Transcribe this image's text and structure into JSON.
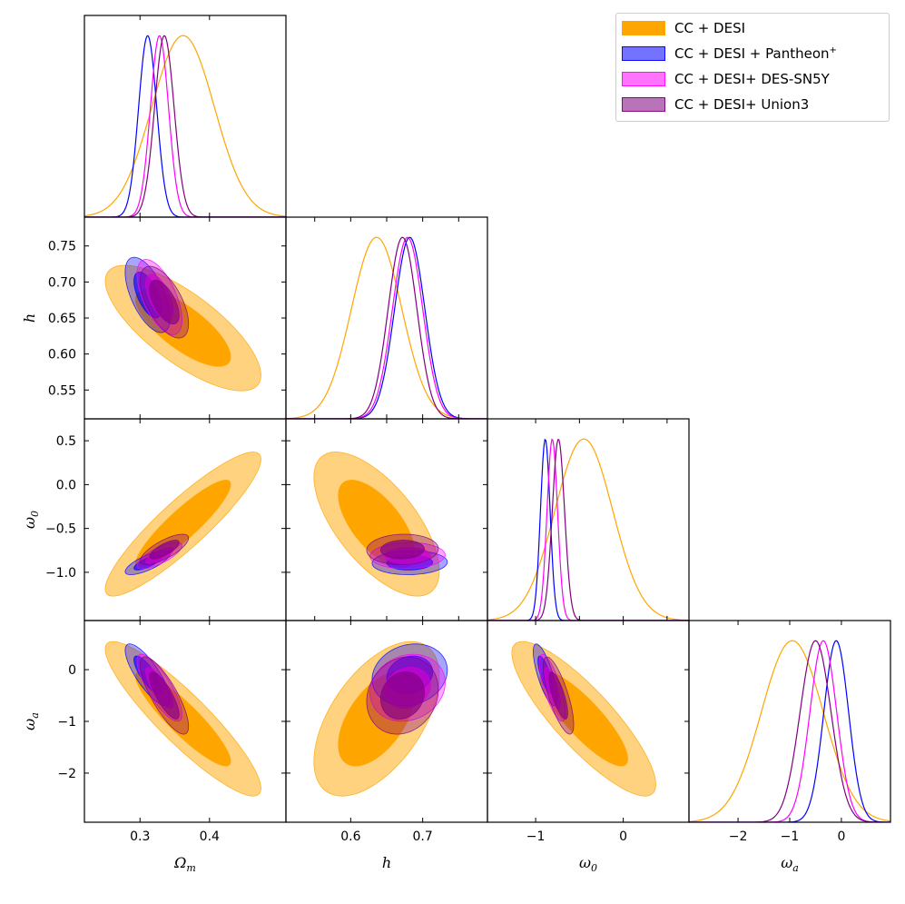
{
  "chart_data": {
    "type": "corner",
    "parameters": [
      "Omega_m",
      "h",
      "omega_0",
      "omega_a"
    ],
    "axis_labels": {
      "Omega_m": {
        "base": "Ω",
        "sub": "m"
      },
      "h": {
        "base": "h",
        "sub": ""
      },
      "omega_0": {
        "base": "ω",
        "sub": "0"
      },
      "omega_a": {
        "base": "ω",
        "sub": "a"
      }
    },
    "ranges": {
      "Omega_m": [
        0.22,
        0.51
      ],
      "h": [
        0.51,
        0.79
      ],
      "omega_0": [
        -1.55,
        0.75
      ],
      "omega_a": [
        -2.95,
        0.95
      ]
    },
    "ticks": {
      "Omega_m": [
        {
          "v": 0.3,
          "label": "0.3"
        },
        {
          "v": 0.4,
          "label": "0.4"
        }
      ],
      "h": [
        {
          "v": 0.55,
          "label": "0.55"
        },
        {
          "v": 0.6,
          "label": "0.60"
        },
        {
          "v": 0.65,
          "label": "0.65"
        },
        {
          "v": 0.7,
          "label": "0.70"
        },
        {
          "v": 0.75,
          "label": "0.75"
        }
      ],
      "h_bottom": [
        {
          "v": 0.6,
          "label": "0.6"
        },
        {
          "v": 0.7,
          "label": "0.7"
        }
      ],
      "omega_0": [
        {
          "v": -1.0,
          "label": "−1.0"
        },
        {
          "v": -0.5,
          "label": "−0.5"
        },
        {
          "v": 0.0,
          "label": "0.0"
        },
        {
          "v": 0.5,
          "label": "0.5"
        }
      ],
      "omega_0_bottom": [
        {
          "v": -1,
          "label": "−1"
        },
        {
          "v": 0,
          "label": "0"
        }
      ],
      "omega_a": [
        {
          "v": -2,
          "label": "−2"
        },
        {
          "v": -1,
          "label": "−1"
        },
        {
          "v": 0,
          "label": "0"
        }
      ]
    },
    "legend_position": "top-right",
    "series": [
      {
        "name": "CC + DESI",
        "color": "#ffa500",
        "mean": {
          "Omega_m": 0.362,
          "h": 0.636,
          "omega_0": -0.45,
          "omega_a": -0.95
        },
        "sigma": {
          "Omega_m": 0.045,
          "h": 0.035,
          "omega_0": 0.33,
          "omega_a": 0.6
        },
        "corr": {
          "Omega_m|h": -0.75,
          "Omega_m|omega_0": 0.9,
          "Omega_m|omega_a": -0.9,
          "h|omega_0": -0.65,
          "h|omega_a": 0.55,
          "omega_0|omega_a": -0.85
        }
      },
      {
        "name": "CC + DESI + Pantheon",
        "name_sup": "+",
        "color": "#0000ff",
        "mean": {
          "Omega_m": 0.311,
          "h": 0.682,
          "omega_0": -0.89,
          "omega_a": -0.1
        },
        "sigma": {
          "Omega_m": 0.013,
          "h": 0.021,
          "omega_0": 0.055,
          "omega_a": 0.24
        },
        "corr": {
          "Omega_m|h": -0.6,
          "Omega_m|omega_0": 0.75,
          "Omega_m|omega_a": -0.8,
          "h|omega_0": 0.05,
          "h|omega_a": 0.15,
          "omega_0|omega_a": -0.75
        }
      },
      {
        "name": "CC + DESI+ DES-SN5Y",
        "color": "#ff00ff",
        "mean": {
          "Omega_m": 0.328,
          "h": 0.679,
          "omega_0": -0.81,
          "omega_a": -0.35
        },
        "sigma": {
          "Omega_m": 0.013,
          "h": 0.021,
          "omega_0": 0.06,
          "omega_a": 0.26
        },
        "corr": {
          "Omega_m|h": -0.6,
          "Omega_m|omega_0": 0.75,
          "Omega_m|omega_a": -0.8,
          "h|omega_0": 0.05,
          "h|omega_a": 0.15,
          "omega_0|omega_a": -0.75
        }
      },
      {
        "name": "CC + DESI+ Union3",
        "color": "#800080",
        "mean": {
          "Omega_m": 0.335,
          "h": 0.672,
          "omega_0": -0.74,
          "omega_a": -0.5
        },
        "sigma": {
          "Omega_m": 0.014,
          "h": 0.02,
          "omega_0": 0.07,
          "omega_a": 0.3
        },
        "corr": {
          "Omega_m|h": -0.6,
          "Omega_m|omega_0": 0.75,
          "Omega_m|omega_a": -0.8,
          "h|omega_0": 0.05,
          "h|omega_a": 0.15,
          "omega_0|omega_a": -0.75
        }
      }
    ]
  }
}
